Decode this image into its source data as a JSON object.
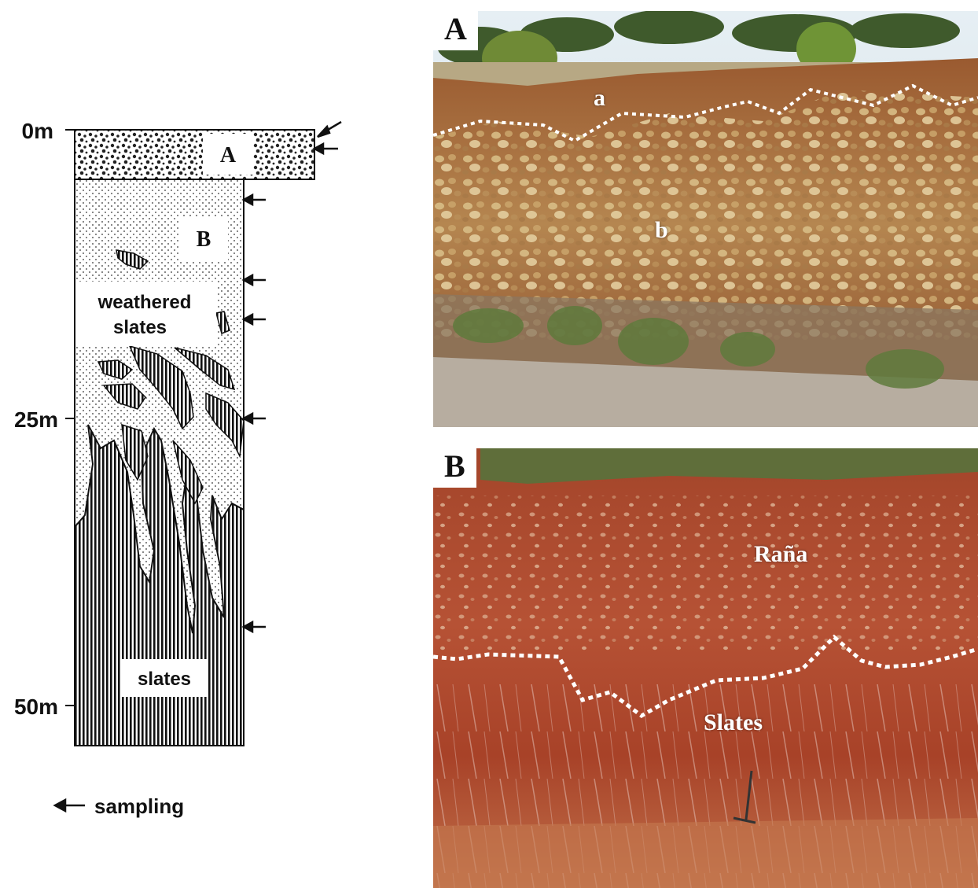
{
  "column": {
    "depths": [
      "0m",
      "25m",
      "50m"
    ],
    "unit_a": "A",
    "unit_b": "B",
    "weathered": [
      "weathered",
      "slates"
    ],
    "slates": "slates"
  },
  "legend": {
    "sampling": "sampling"
  },
  "photo_a": {
    "letter": "A",
    "label_a": "a",
    "label_b": "b"
  },
  "photo_b": {
    "letter": "B",
    "label_rana": "Raña",
    "label_slates": "Slates"
  },
  "colors": {
    "soil_red": "#a8432a",
    "soil_dark": "#8a3020",
    "gravel": "#c9a36a",
    "sky": "#dfeaf1",
    "dotted_line": "#ffffff"
  }
}
